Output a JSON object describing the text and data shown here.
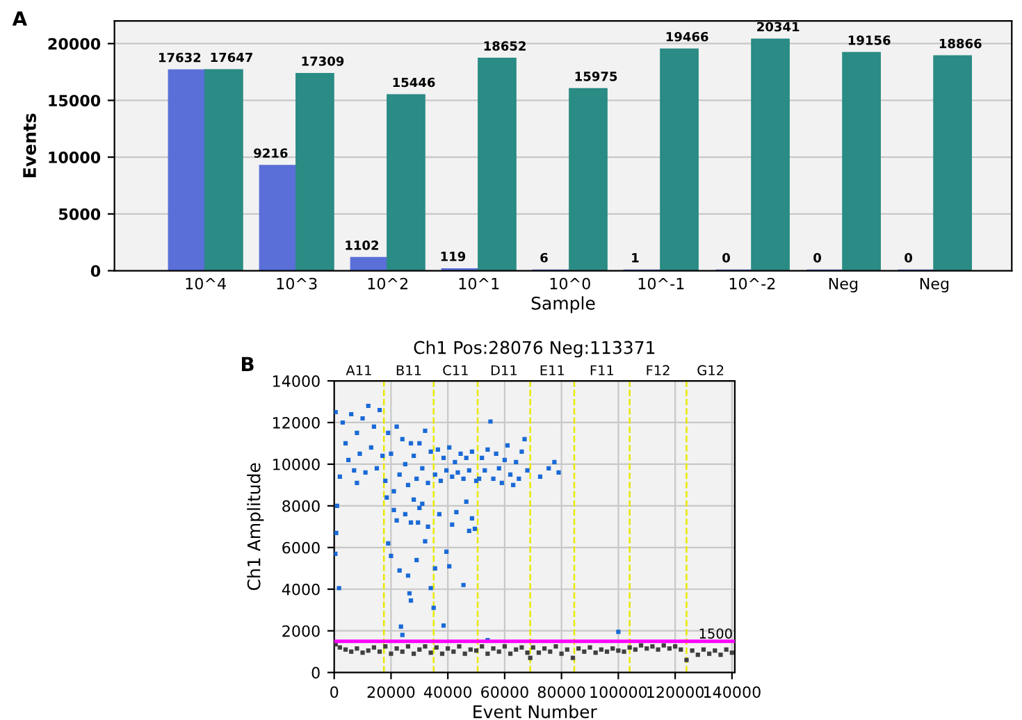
{
  "chart_data": [
    {
      "type": "bar",
      "xlabel": "Sample",
      "ylabel": "Events",
      "annotations": [
        "A"
      ],
      "categories": [
        "10^4",
        "10^3",
        "10^2",
        "10^1",
        "10^0",
        "10^-1",
        "10^-2",
        "Neg",
        "Neg"
      ],
      "series": [
        {
          "color": "#5a6fd8",
          "values": [
            17632,
            9216,
            1102,
            119,
            6,
            1,
            0,
            0,
            0
          ]
        },
        {
          "color": "#2a8c84",
          "values": [
            17647,
            17309,
            15446,
            18652,
            15975,
            19466,
            20341,
            19156,
            18866
          ]
        }
      ],
      "ylim": [
        0,
        22000
      ],
      "yticks": [
        0,
        5000,
        10000,
        15000,
        20000
      ],
      "grid": "y",
      "data_labels": true
    },
    {
      "type": "scatter",
      "title": "Ch1 Pos:28076 Neg:113371",
      "xlabel": "Event Number",
      "ylabel": "Ch1 Amplitude",
      "annotations": [
        "B",
        "A11",
        "B11",
        "C11",
        "D11",
        "E11",
        "F11",
        "F12",
        "G12"
      ],
      "series": [
        {
          "color": "#1a6ad6",
          "marker": "square",
          "x": [
            500,
            2000,
            3000,
            4000,
            5000,
            6000,
            7000,
            8000,
            9000,
            10000,
            11000,
            12000,
            13000,
            14000,
            15000,
            16000,
            17000,
            1000,
            700,
            400,
            1700,
            8000,
            18000,
            19000,
            20000,
            21000,
            22000,
            23000,
            24000,
            25000,
            26000,
            27000,
            28000,
            29000,
            30000,
            31000,
            32000,
            33000,
            34000,
            18500,
            19000,
            20000,
            21000,
            22000,
            23000,
            23500,
            24000,
            25000,
            26000,
            26500,
            27000,
            27000,
            28000,
            29000,
            29500,
            30000,
            31000,
            32000,
            33000,
            34000,
            35000,
            35500,
            35500,
            36500,
            37500,
            38500,
            39500,
            40500,
            41500,
            42500,
            43500,
            44500,
            45500,
            46500,
            47500,
            48500,
            50000,
            37000,
            38500,
            39500,
            40500,
            41500,
            43000,
            45500,
            46500,
            47500,
            48500,
            49500,
            51000,
            52000,
            53000,
            54000,
            55000,
            56000,
            57000,
            58000,
            59000,
            60000,
            61000,
            62000,
            63000,
            64000,
            65000,
            66000,
            67000,
            68000,
            54000,
            72500,
            75500,
            77500,
            79000,
            100000
          ],
          "values": [
            12500,
            9400,
            12000,
            11000,
            10200,
            12400,
            9700,
            11500,
            10500,
            12200,
            9600,
            12800,
            10800,
            11800,
            9800,
            12600,
            10400,
            8000,
            6700,
            5700,
            4050,
            9100,
            9200,
            11500,
            10500,
            8700,
            11800,
            9500,
            11200,
            10000,
            9000,
            11000,
            10400,
            9300,
            11000,
            9800,
            11600,
            9100,
            10600,
            8400,
            6200,
            5600,
            7800,
            7300,
            4900,
            2200,
            1800,
            7600,
            4650,
            3800,
            3450,
            7200,
            8300,
            5400,
            7200,
            7900,
            8100,
            6300,
            7000,
            4050,
            3100,
            5000,
            9500,
            10700,
            9200,
            10300,
            9700,
            10800,
            9400,
            10100,
            9600,
            10500,
            9300,
            10300,
            9700,
            10600,
            9200,
            7600,
            2250,
            5800,
            5100,
            7100,
            7700,
            4200,
            8200,
            6800,
            7400,
            6900,
            9300,
            10300,
            9700,
            10700,
            12050,
            9300,
            10500,
            9800,
            9100,
            10200,
            10900,
            9500,
            9000,
            10100,
            9300,
            10600,
            11200,
            9700,
            1550,
            9400,
            9800,
            10100,
            9600,
            1950
          ]
        },
        {
          "color": "#404040",
          "marker": "square",
          "x": [
            500,
            2000,
            4000,
            6000,
            8000,
            10000,
            12000,
            14000,
            16000,
            18000,
            20000,
            22000,
            24000,
            26000,
            28000,
            30000,
            32000,
            34000,
            36000,
            38000,
            40000,
            42000,
            44000,
            46000,
            48000,
            50000,
            52000,
            54000,
            56000,
            58000,
            60000,
            62000,
            64000,
            66000,
            68000,
            69000,
            70000,
            72000,
            74000,
            76000,
            78000,
            80000,
            82000,
            84000,
            86000,
            88000,
            90000,
            92000,
            94000,
            96000,
            98000,
            100000,
            102000,
            104000,
            106000,
            108000,
            110000,
            112000,
            114000,
            116000,
            118000,
            120000,
            122000,
            124000,
            126000,
            128000,
            130000,
            132000,
            134000,
            136000,
            138000,
            140000
          ],
          "values": [
            1350,
            1200,
            1100,
            1000,
            1150,
            950,
            1050,
            1200,
            1000,
            1250,
            900,
            1150,
            1000,
            1250,
            900,
            1100,
            1250,
            950,
            1200,
            900,
            1150,
            1000,
            1250,
            900,
            1100,
            1050,
            1250,
            900,
            1150,
            1000,
            1250,
            900,
            1100,
            1200,
            950,
            700,
            1200,
            950,
            1150,
            1000,
            1250,
            900,
            1100,
            700,
            1150,
            1000,
            1200,
            950,
            1100,
            1000,
            1150,
            1050,
            1000,
            1200,
            1100,
            1300,
            1150,
            1250,
            1100,
            1300,
            1150,
            1250,
            1100,
            600,
            1050,
            850,
            1100,
            900,
            1050,
            850,
            1100,
            950
          ]
        }
      ],
      "xlim": [
        0,
        141000
      ],
      "xticks": [
        0,
        20000,
        40000,
        60000,
        80000,
        100000,
        120000,
        140000
      ],
      "ylim": [
        0,
        14000
      ],
      "yticks": [
        0,
        2000,
        4000,
        6000,
        8000,
        10000,
        12000,
        14000
      ],
      "grid": true,
      "ref_lines": [
        {
          "axis": "x",
          "value": 17500,
          "color": "#e8e800",
          "line_style": "dashed"
        },
        {
          "axis": "x",
          "value": 35000,
          "color": "#e8e800",
          "line_style": "dashed"
        },
        {
          "axis": "x",
          "value": 50500,
          "color": "#e8e800",
          "line_style": "dashed"
        },
        {
          "axis": "x",
          "value": 69000,
          "color": "#e8e800",
          "line_style": "dashed"
        },
        {
          "axis": "x",
          "value": 84500,
          "color": "#e8e800",
          "line_style": "dashed"
        },
        {
          "axis": "x",
          "value": 104000,
          "color": "#e8e800",
          "line_style": "dashed"
        },
        {
          "axis": "x",
          "value": 124000,
          "color": "#e8e800",
          "line_style": "dashed"
        },
        {
          "axis": "y",
          "value": 1500,
          "label": "1500",
          "color": "#ff00ff",
          "line_style": "solid"
        }
      ]
    }
  ]
}
